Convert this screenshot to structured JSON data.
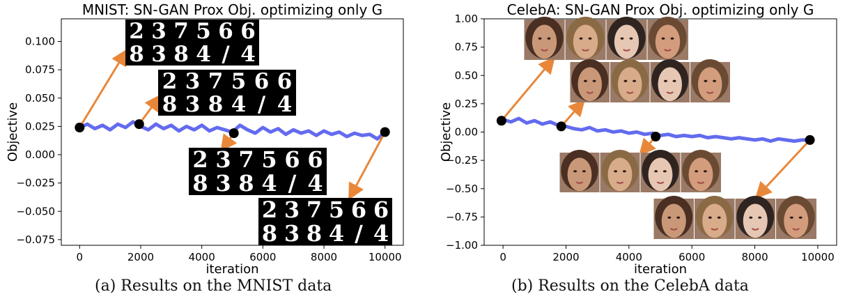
{
  "chart_data": [
    {
      "type": "line",
      "title": "MNIST: SN-GAN Prox Obj. optimizing only G",
      "xlabel": "iteration",
      "ylabel": "Objective",
      "xlim": [
        -600,
        10600
      ],
      "ylim": [
        -0.08,
        0.12
      ],
      "xticks": [
        0,
        2000,
        4000,
        6000,
        8000,
        10000
      ],
      "xtick_labels": [
        "0",
        "2000",
        "4000",
        "6000",
        "8000",
        "10000"
      ],
      "yticks": [
        -0.075,
        -0.05,
        -0.025,
        0.0,
        0.025,
        0.05,
        0.075,
        0.1
      ],
      "ytick_labels": [
        "−0.075",
        "−0.050",
        "−0.025",
        "0.000",
        "0.025",
        "0.050",
        "0.075",
        "0.100"
      ],
      "grid": false,
      "series": [
        {
          "color": "#5b63ee",
          "x": [
            0,
            250,
            500,
            750,
            1000,
            1250,
            1500,
            1750,
            2000,
            2250,
            2500,
            2750,
            3000,
            3250,
            3500,
            3750,
            4000,
            4250,
            4500,
            4750,
            5000,
            5250,
            5500,
            5750,
            6000,
            6250,
            6500,
            6750,
            7000,
            7250,
            7500,
            7750,
            8000,
            8250,
            8500,
            8750,
            9000,
            9250,
            9500,
            9750,
            10000
          ],
          "y": [
            0.024,
            0.027,
            0.023,
            0.026,
            0.022,
            0.027,
            0.024,
            0.029,
            0.025,
            0.022,
            0.027,
            0.023,
            0.026,
            0.021,
            0.025,
            0.022,
            0.026,
            0.021,
            0.024,
            0.022,
            0.02,
            0.026,
            0.022,
            0.019,
            0.024,
            0.02,
            0.023,
            0.018,
            0.022,
            0.019,
            0.021,
            0.017,
            0.021,
            0.018,
            0.02,
            0.016,
            0.019,
            0.017,
            0.018,
            0.014,
            0.02
          ]
        }
      ],
      "markers": [
        {
          "x": 0,
          "y": 0.024
        },
        {
          "x": 1950,
          "y": 0.027
        },
        {
          "x": 5050,
          "y": 0.019
        },
        {
          "x": 10000,
          "y": 0.02
        }
      ],
      "marker_color": "#000000",
      "arrow_color": "#e8873a",
      "inset_images": [
        "mnist-samples",
        "mnist-samples",
        "mnist-samples",
        "mnist-samples"
      ],
      "inset_digit_rows": [
        [
          "2",
          "3",
          "7",
          "5",
          "6",
          "6"
        ],
        [
          "8",
          "3",
          "8",
          "4",
          "/",
          "4"
        ]
      ]
    },
    {
      "type": "line",
      "title": "CelebA: SN-GAN Prox Obj. optimizing only G",
      "xlabel": "iteration",
      "ylabel": "Objective",
      "xlim": [
        -600,
        10600
      ],
      "ylim": [
        -1.0,
        1.0
      ],
      "xticks": [
        0,
        2000,
        4000,
        6000,
        8000,
        10000
      ],
      "xtick_labels": [
        "0",
        "2000",
        "4000",
        "6000",
        "8000",
        "10000"
      ],
      "yticks": [
        -1.0,
        -0.75,
        -0.5,
        -0.25,
        0.0,
        0.25,
        0.5,
        0.75,
        1.0
      ],
      "ytick_labels": [
        "−1.00",
        "−0.75",
        "−0.50",
        "−0.25",
        "0.00",
        "0.25",
        "0.50",
        "0.75",
        "1.00"
      ],
      "grid": false,
      "series": [
        {
          "color": "#5b63ee",
          "x": [
            0,
            250,
            500,
            750,
            1000,
            1250,
            1500,
            1750,
            2000,
            2250,
            2500,
            2750,
            3000,
            3250,
            3500,
            3750,
            4000,
            4250,
            4500,
            4750,
            5000,
            5250,
            5500,
            5750,
            6000,
            6250,
            6500,
            6750,
            7000,
            7250,
            7500,
            7750,
            8000,
            8250,
            8500,
            8750,
            9000,
            9250,
            9500,
            9750
          ],
          "y": [
            0.11,
            0.09,
            0.12,
            0.08,
            0.1,
            0.07,
            0.09,
            0.06,
            0.05,
            0.03,
            0.02,
            0.04,
            0.01,
            0.02,
            0.0,
            0.01,
            -0.01,
            0.0,
            -0.02,
            -0.01,
            -0.03,
            -0.02,
            -0.04,
            -0.03,
            -0.04,
            -0.03,
            -0.05,
            -0.04,
            -0.05,
            -0.06,
            -0.05,
            -0.06,
            -0.07,
            -0.06,
            -0.08,
            -0.06,
            -0.07,
            -0.08,
            -0.07,
            -0.07
          ]
        }
      ],
      "markers": [
        {
          "x": -50,
          "y": 0.1
        },
        {
          "x": 1850,
          "y": 0.05
        },
        {
          "x": 4850,
          "y": -0.04
        },
        {
          "x": 9750,
          "y": -0.07
        }
      ],
      "marker_color": "#000000",
      "arrow_color": "#e8873a",
      "inset_images": [
        "celeba-faces",
        "celeba-faces",
        "celeba-faces",
        "celeba-faces"
      ]
    }
  ],
  "captions": {
    "a": "(a) Results on the MNIST data",
    "b": "(b) Results on the CelebA data"
  }
}
